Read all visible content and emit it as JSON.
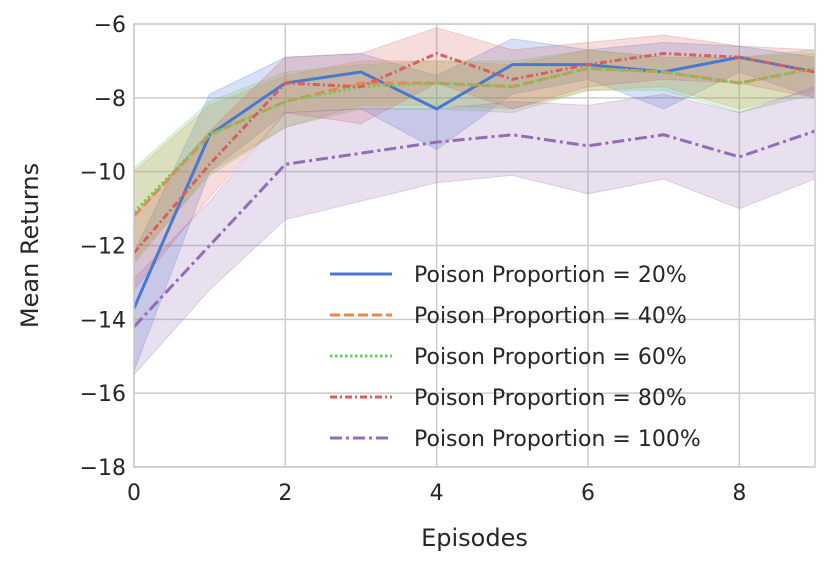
{
  "chart_data": {
    "type": "line",
    "title": "",
    "xlabel": "Episodes",
    "ylabel": "Mean Returns",
    "xlim": [
      0,
      9
    ],
    "ylim": [
      -18,
      -6
    ],
    "x": [
      0,
      1,
      2,
      3,
      4,
      5,
      6,
      7,
      8,
      9
    ],
    "xticks": [
      0,
      2,
      4,
      6,
      8
    ],
    "yticks": [
      -18,
      -16,
      -14,
      -12,
      -10,
      -8,
      -6
    ],
    "xtick_labels": [
      "0",
      "2",
      "4",
      "6",
      "8"
    ],
    "ytick_labels": [
      "−18",
      "−16",
      "−14",
      "−12",
      "−10",
      "−8",
      "−6"
    ],
    "grid": true,
    "legend_position": "bottom-right",
    "series": [
      {
        "name": "Poison Proportion = 20%",
        "color": "#4878d0",
        "dash": "solid",
        "values": [
          -13.7,
          -9.0,
          -7.6,
          -7.3,
          -8.3,
          -7.1,
          -7.1,
          -7.3,
          -6.9,
          -7.3
        ],
        "lower": [
          -15.4,
          -10.0,
          -8.4,
          -8.3,
          -9.4,
          -7.9,
          -7.5,
          -8.3,
          -7.3,
          -8.0
        ],
        "upper": [
          -12.2,
          -7.9,
          -6.9,
          -6.8,
          -7.4,
          -6.4,
          -6.7,
          -6.5,
          -6.6,
          -6.9
        ]
      },
      {
        "name": "Poison Proportion = 40%",
        "color": "#ee854a",
        "dash": "dashed",
        "values": [
          -11.2,
          -9.0,
          -8.1,
          -7.6,
          -7.6,
          -7.7,
          -7.2,
          -7.3,
          -7.6,
          -7.2
        ],
        "lower": [
          -12.5,
          -10.0,
          -8.8,
          -8.2,
          -8.2,
          -8.3,
          -7.8,
          -7.7,
          -8.3,
          -7.8
        ],
        "upper": [
          -10.0,
          -8.2,
          -7.4,
          -7.0,
          -7.0,
          -7.1,
          -6.7,
          -6.9,
          -6.9,
          -6.8
        ]
      },
      {
        "name": "Poison Proportion = 60%",
        "color": "#6acc64",
        "dash": "dotted",
        "values": [
          -11.1,
          -9.0,
          -8.1,
          -7.7,
          -7.6,
          -7.7,
          -7.2,
          -7.3,
          -7.6,
          -7.2
        ],
        "lower": [
          -12.4,
          -10.1,
          -8.8,
          -8.3,
          -8.3,
          -8.4,
          -7.8,
          -7.8,
          -8.4,
          -7.9
        ],
        "upper": [
          -9.9,
          -8.1,
          -7.3,
          -7.1,
          -7.0,
          -7.0,
          -6.7,
          -6.9,
          -6.9,
          -6.7
        ]
      },
      {
        "name": "Poison Proportion = 80%",
        "color": "#d65f5f",
        "dash": "dashdot-dense",
        "values": [
          -12.2,
          -9.8,
          -7.6,
          -7.7,
          -6.8,
          -7.5,
          -7.1,
          -6.8,
          -6.9,
          -7.3
        ],
        "lower": [
          -13.2,
          -10.7,
          -8.4,
          -8.7,
          -7.6,
          -8.3,
          -7.7,
          -7.5,
          -7.6,
          -8.0
        ],
        "upper": [
          -11.2,
          -8.9,
          -6.9,
          -6.8,
          -6.1,
          -6.7,
          -6.5,
          -6.3,
          -6.6,
          -6.7
        ]
      },
      {
        "name": "Poison Proportion = 100%",
        "color": "#956cb4",
        "dash": "dashdot",
        "values": [
          -14.2,
          -12.0,
          -9.8,
          -9.5,
          -9.2,
          -9.0,
          -9.3,
          -9.0,
          -9.6,
          -8.9
        ],
        "lower": [
          -15.5,
          -13.2,
          -11.3,
          -10.8,
          -10.3,
          -10.1,
          -10.6,
          -10.2,
          -11.0,
          -10.2
        ],
        "upper": [
          -12.9,
          -10.8,
          -8.4,
          -8.3,
          -8.3,
          -8.1,
          -8.2,
          -7.9,
          -8.4,
          -7.7
        ]
      }
    ]
  }
}
